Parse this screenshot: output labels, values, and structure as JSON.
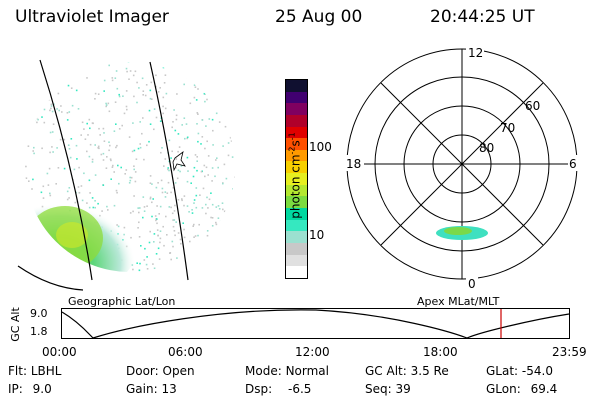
{
  "header": {
    "instrument": "Ultraviolet Imager",
    "date": "25 Aug 00",
    "time": "20:44:25 UT"
  },
  "colorbar": {
    "title": "photon cm",
    "exp1": "-2",
    "unit2": "s",
    "exp2": "-1",
    "ticks": [
      "100",
      "10"
    ],
    "colors": [
      "#ffffff",
      "#e0e0e0",
      "#c8c8c8",
      "#9be0d0",
      "#35e8c0",
      "#00d8a0",
      "#7cdc40",
      "#b4e830",
      "#e6ef20",
      "#f7d000",
      "#ff9a00",
      "#ff5000",
      "#e00000",
      "#b0002a",
      "#800060",
      "#400070",
      "#101030"
    ]
  },
  "labels": {
    "geo": "Geographic Lat/Lon",
    "apex": "Apex MLat/MLT",
    "yaxis": "GC Alt",
    "ytick_top": "9.0",
    "ytick_bottom": "1.8"
  },
  "polar": {
    "mlt_top": "12",
    "mlt_left": "18",
    "mlt_right": "6",
    "mlt_bottom": "0",
    "lat_80": "80",
    "lat_70": "70",
    "lat_60": "60"
  },
  "timeline": {
    "ticks": [
      "00:00",
      "06:00",
      "12:00",
      "18:00",
      "23:59"
    ],
    "marker_color": "#cc0000"
  },
  "status": {
    "flt_label": "Flt:",
    "flt_value": "LBHL",
    "ip_label": "IP:",
    "ip_value": "9.0",
    "door_label": "Door:",
    "door_value": "Open",
    "gain_label": "Gain:",
    "gain_value": "13",
    "mode_label": "Mode:",
    "mode_value": "Normal",
    "dsp_label": "Dsp:",
    "dsp_value": "-6.5",
    "gcalt_label": "GC Alt:",
    "gcalt_value": "3.5 Re",
    "seq_label": "Seq:",
    "seq_value": "39",
    "glat_label": "GLat:",
    "glat_value": "-54.0",
    "glon_label": "GLon:",
    "glon_value": "69.4"
  }
}
